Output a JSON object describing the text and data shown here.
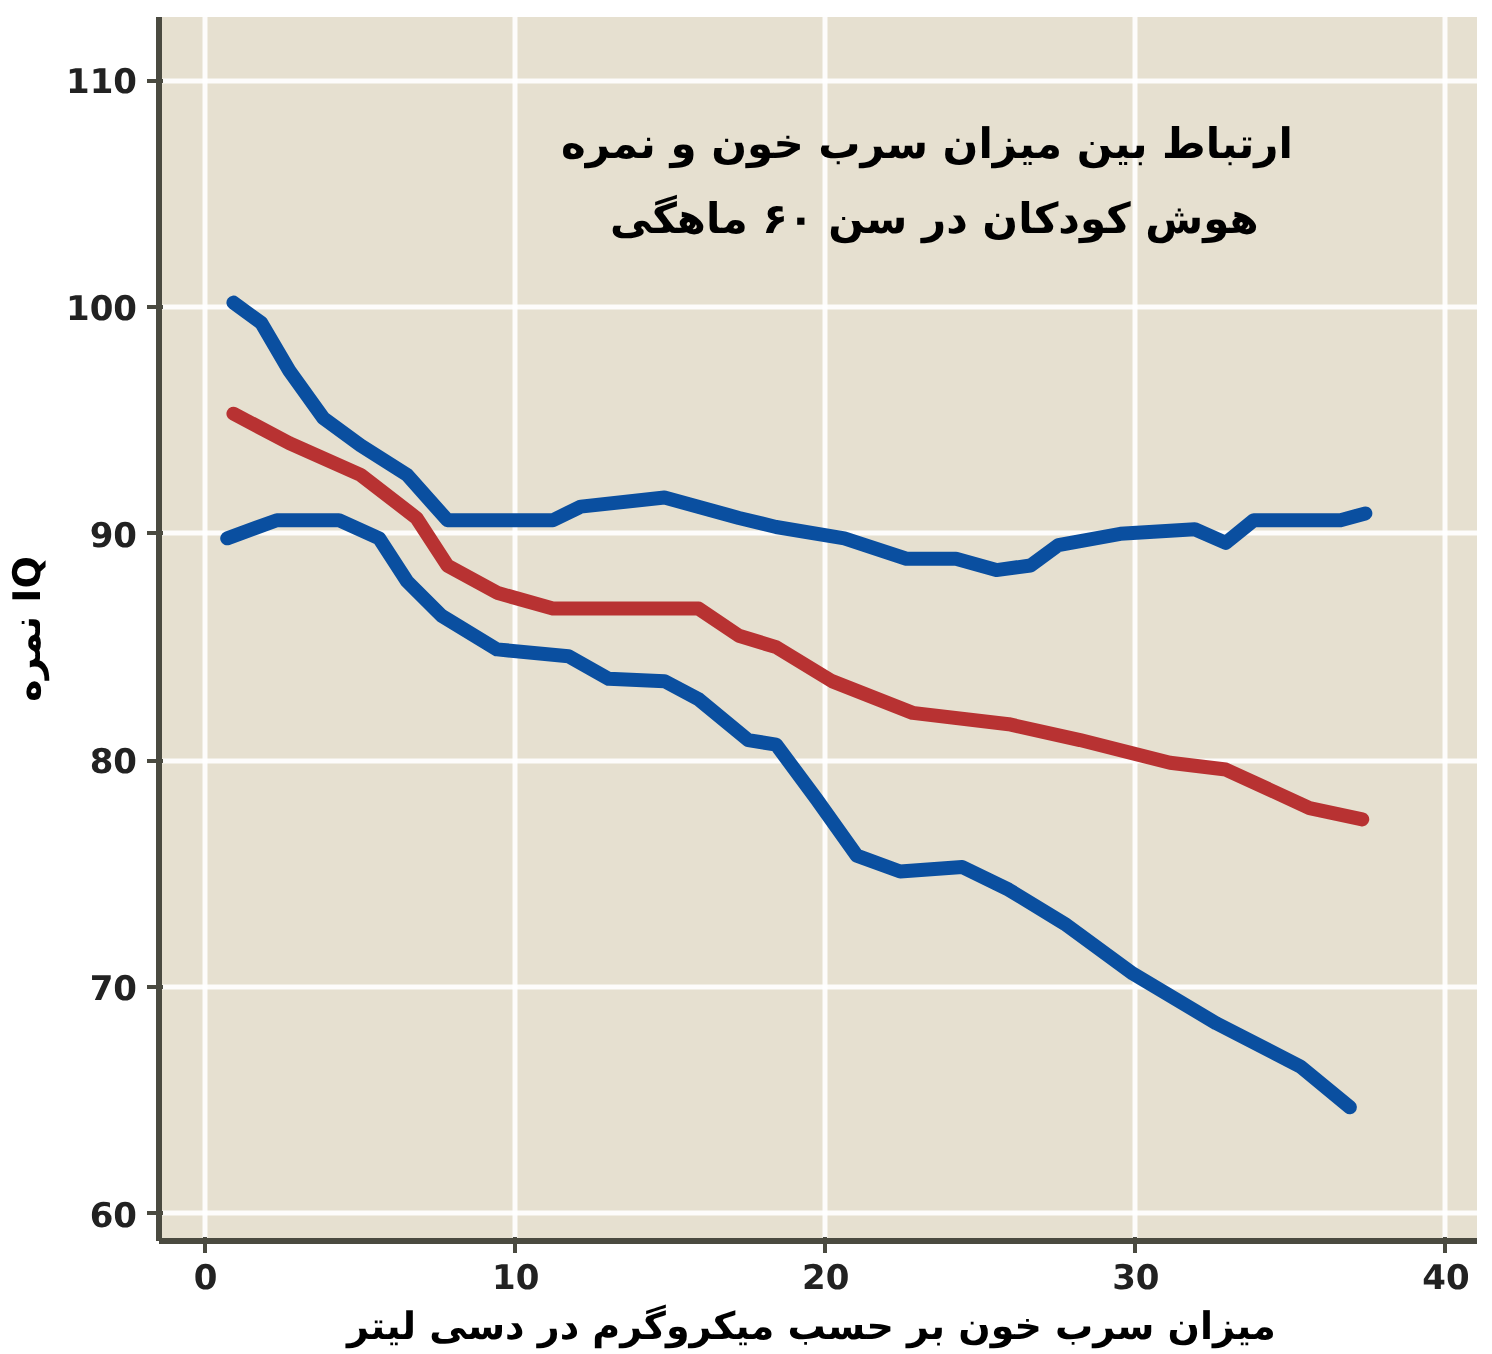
{
  "chart_data": {
    "type": "line",
    "title": "ارتباط بین میزان سرب خون  و نمره\nهوش کودکان در سن ۶۰ ماهگی",
    "xlabel": "میزان سرب خون  بر حسب میکروگرم در دسی لیتر",
    "ylabel": "نمره IQ",
    "xlim": [
      -1.5,
      41
    ],
    "ylim": [
      58.8,
      112.8
    ],
    "xticks": [
      0,
      10,
      20,
      30,
      40
    ],
    "yticks": [
      60,
      70,
      80,
      90,
      100,
      110
    ],
    "grid": true,
    "line_style": "solid",
    "series": [
      {
        "color": "#0a4fa0",
        "x": [
          0.9,
          1.8,
          2.7,
          3.8,
          5.0,
          6.5,
          7.8,
          11.2,
          12.1,
          14.8,
          17.2,
          18.4,
          20.6,
          22.6,
          24.2,
          25.5,
          26.6,
          27.5,
          29.5,
          31.9,
          32.9,
          33.8,
          36.6,
          37.4
        ],
        "values": [
          100.2,
          99.3,
          97.2,
          95.1,
          93.9,
          92.6,
          90.6,
          90.6,
          91.2,
          91.6,
          90.7,
          90.3,
          89.8,
          88.9,
          88.9,
          88.4,
          88.6,
          89.5,
          90.0,
          90.2,
          89.6,
          90.6,
          90.6,
          90.9
        ]
      },
      {
        "color": "#b83232",
        "x": [
          0.9,
          2.7,
          5.0,
          6.8,
          7.8,
          9.4,
          11.2,
          15.9,
          17.2,
          18.4,
          20.2,
          22.8,
          25.9,
          28.2,
          31.1,
          32.9,
          35.6,
          37.3
        ],
        "values": [
          95.3,
          94.0,
          92.6,
          90.7,
          88.6,
          87.4,
          86.7,
          86.7,
          85.5,
          85.0,
          83.5,
          82.1,
          81.6,
          80.9,
          79.9,
          79.6,
          77.9,
          77.4
        ]
      },
      {
        "color": "#0a4fa0",
        "x": [
          0.7,
          2.3,
          4.3,
          5.6,
          6.5,
          7.6,
          9.4,
          11.7,
          13.0,
          14.8,
          15.9,
          17.5,
          18.4,
          19.7,
          21.0,
          22.4,
          24.4,
          25.9,
          27.7,
          29.9,
          32.6,
          35.3,
          36.9
        ],
        "values": [
          89.8,
          90.6,
          90.6,
          89.8,
          87.9,
          86.4,
          84.9,
          84.6,
          83.6,
          83.5,
          82.7,
          80.9,
          80.7,
          78.3,
          75.8,
          75.1,
          75.3,
          74.3,
          72.8,
          70.6,
          68.4,
          66.5,
          64.7
        ]
      }
    ]
  }
}
